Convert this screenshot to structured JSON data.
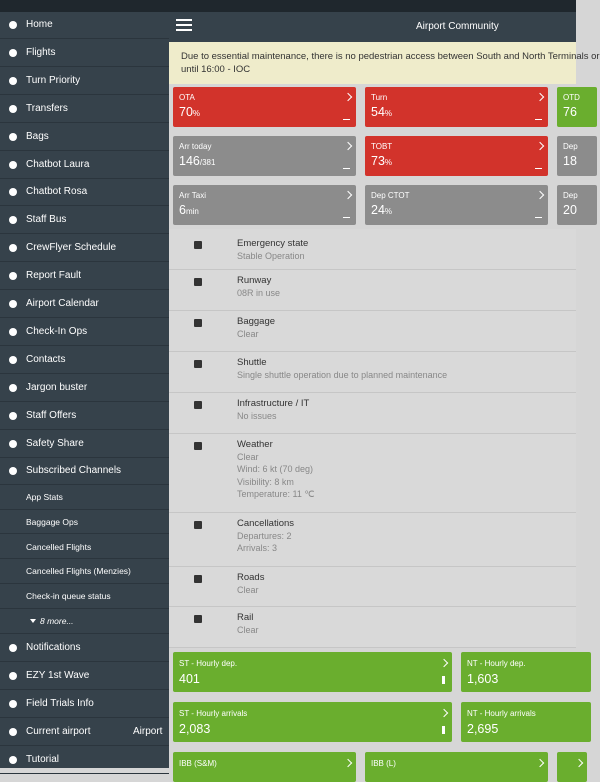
{
  "status_bar": {},
  "header": {
    "title": "Airport Community"
  },
  "banner": {
    "lines": [
      "Due to essential maintenance, there is no pedestrian access between South and North Terminals or",
      "until 16:00 - IOC"
    ]
  },
  "sidebar": {
    "items": [
      "Home",
      "Flights",
      "Turn Priority",
      "Transfers",
      "Bags",
      "Chatbot Laura",
      "Chatbot Rosa",
      "Staff Bus",
      "CrewFlyer Schedule",
      "Report Fault",
      "Airport Calendar",
      "Check-In Ops",
      "Contacts",
      "Jargon buster",
      "Staff Offers",
      "Safety Share",
      "Subscribed Channels"
    ],
    "channels": [
      "App Stats",
      "Baggage Ops",
      "Cancelled Flights",
      "Cancelled Flights (Menzies)",
      "Check-in queue status"
    ],
    "more": "8 more...",
    "footer": [
      {
        "label": "Notifications"
      },
      {
        "label": "EZY 1st Wave"
      },
      {
        "label": "Field Trials Info"
      },
      {
        "label": "Current airport",
        "value": "Airport"
      },
      {
        "label": "Tutorial"
      }
    ]
  },
  "tiles": [
    [
      {
        "label": "OTA",
        "value": "70",
        "unit": "%",
        "color": "#d2332b"
      },
      {
        "label": "Turn",
        "value": "54",
        "unit": "%",
        "color": "#d2332b"
      },
      {
        "label": "OTD",
        "value": "76",
        "color": "#6aae2e"
      }
    ],
    [
      {
        "label": "Arr today",
        "value": "146",
        "unit": "/381",
        "color": "#8c8c8c"
      },
      {
        "label": "TOBT",
        "value": "73",
        "unit": "%",
        "color": "#d2332b"
      },
      {
        "label": "Dep",
        "value": "18",
        "color": "#8c8c8c"
      }
    ],
    [
      {
        "label": "Arr Taxi",
        "value": "6",
        "unit": "min",
        "color": "#8c8c8c"
      },
      {
        "label": "Dep CTOT",
        "value": "24",
        "unit": "%",
        "color": "#8c8c8c"
      },
      {
        "label": "Dep",
        "value": "20",
        "color": "#8c8c8c"
      }
    ]
  ],
  "status": [
    {
      "title": "Emergency state",
      "detail": [
        "Stable Operation"
      ]
    },
    {
      "title": "Runway",
      "detail": [
        "08R in use"
      ]
    },
    {
      "title": "Baggage",
      "detail": [
        "Clear"
      ]
    },
    {
      "title": "Shuttle",
      "detail": [
        "Single shuttle operation due to planned maintenance"
      ]
    },
    {
      "title": "Infrastructure / IT",
      "detail": [
        "No issues"
      ]
    },
    {
      "title": "Weather",
      "detail": [
        "Clear",
        "Wind: 6 kt (70 deg)",
        "Visibility: 8 km",
        "Temperature: 11 ℃"
      ]
    },
    {
      "title": "Cancellations",
      "detail": [
        "Departures: 2",
        "Arrivals: 3"
      ]
    },
    {
      "title": "Roads",
      "detail": [
        "Clear"
      ]
    },
    {
      "title": "Rail",
      "detail": [
        "Clear"
      ]
    }
  ],
  "wide_tiles": [
    [
      {
        "label": "ST - Hourly dep.",
        "value": "401"
      },
      {
        "label": "NT - Hourly dep.",
        "value": "1,603"
      }
    ],
    [
      {
        "label": "ST - Hourly arrivals",
        "value": "2,083"
      },
      {
        "label": "NT - Hourly arrivals",
        "value": "2,695"
      }
    ],
    [
      {
        "label": "IBB (S&M)"
      },
      {
        "label": "IBB (L)"
      },
      {
        "label": ""
      }
    ]
  ]
}
